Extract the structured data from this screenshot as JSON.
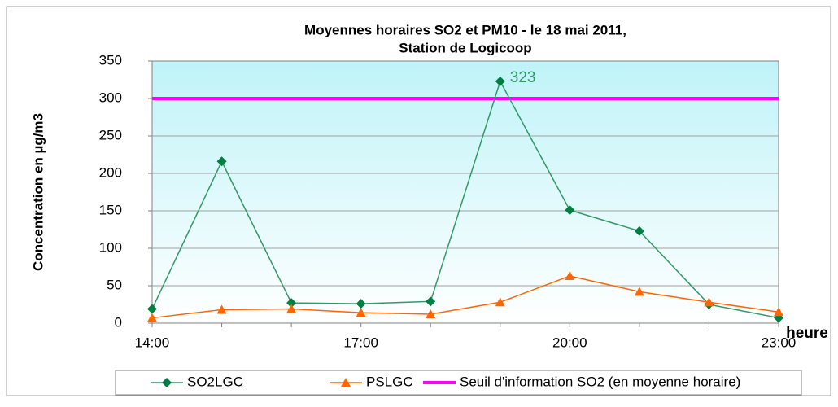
{
  "chart_data": {
    "type": "line",
    "title": [
      "Moyennes horaires SO2 et PM10 -  le 18 mai 2011,",
      "Station de Logicoop"
    ],
    "y_label": "Concentration en µg/m3",
    "x_label": "heure",
    "categories": [
      "14:00",
      null,
      null,
      "17:00",
      null,
      null,
      "20:00",
      null,
      null,
      "23:00"
    ],
    "series": [
      {
        "name": "SO2LGC",
        "color": "#339966",
        "marker_color": "#008040",
        "marker": "diamond",
        "values": [
          19,
          216,
          27,
          26,
          29,
          323,
          151,
          123,
          25,
          7
        ]
      },
      {
        "name": "PSLGC",
        "color": "#ff6600",
        "marker_color": "#ff6600",
        "marker": "triangle",
        "values": [
          7,
          18,
          19,
          14,
          12,
          28,
          63,
          42,
          28,
          15
        ]
      }
    ],
    "threshold": {
      "name": "Seuil d'information SO2 (en moyenne horaire)",
      "value": 300,
      "color": "#ff00ff"
    },
    "annotation": {
      "series": 0,
      "index": 5
    },
    "ylim": [
      0,
      350
    ],
    "yticks": [
      0,
      50,
      100,
      150,
      200,
      250,
      300,
      350
    ],
    "grid": true
  }
}
